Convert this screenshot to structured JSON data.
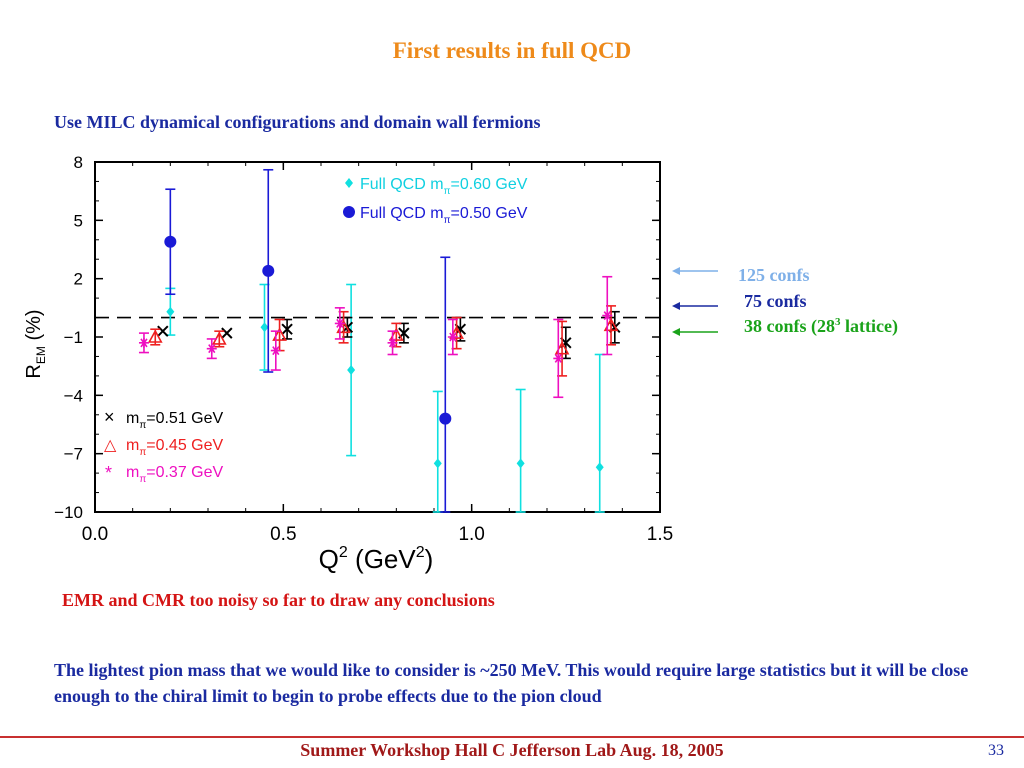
{
  "slide": {
    "title": "First results in full QCD",
    "subtitle": "Use MILC dynamical configurations and domain wall fermions",
    "emr_note": "EMR and CMR too noisy so far  to draw any conclusions",
    "paragraph": "The lightest pion mass that we would like to consider is ~250 MeV. This would require large statistics but it will be close enough to the chiral limit to begin to probe effects due to the pion cloud",
    "footer": "Summer Workshop     Hall C Jefferson Lab Aug. 18, 2005",
    "page_number": "33"
  },
  "conf_notes": {
    "n125": "125 confs",
    "n75": "75 confs",
    "n38_pre": "38 confs (28",
    "n38_sup": "3",
    "n38_post": " lattice)"
  },
  "colors": {
    "title": "#ee8a1a",
    "text_blue": "#1a2aa0",
    "red": "#d41414",
    "light_blue": "#7fb0e8",
    "green": "#1aa31a"
  },
  "chart_data": {
    "type": "scatter",
    "ylabel": "R_EM (%)",
    "xlabel": "Q^2 (GeV^2)",
    "xlim": [
      0.0,
      1.5
    ],
    "ylim": [
      -10,
      8
    ],
    "xticks": [
      "0.0",
      "0.5",
      "1.0",
      "1.5"
    ],
    "yticks": [
      "8",
      "5",
      "2",
      "−1",
      "−4",
      "−7",
      "−10"
    ],
    "ytick_values": [
      8,
      5,
      2,
      -1,
      -4,
      -7,
      -10
    ],
    "xtick_values": [
      0.0,
      0.5,
      1.0,
      1.5
    ],
    "reference_line": 0,
    "series": [
      {
        "name": "Full  QCD  m_π=0.60  GeV",
        "marker": "diamond",
        "color": "#10e0e0",
        "points": [
          {
            "x": 0.2,
            "y": 0.3,
            "err": 1.2
          },
          {
            "x": 0.45,
            "y": -0.5,
            "err": 2.2
          },
          {
            "x": 0.68,
            "y": -2.7,
            "err": 4.4
          },
          {
            "x": 0.91,
            "y": -7.5,
            "err": 3.7
          },
          {
            "x": 1.13,
            "y": -7.5,
            "err": 3.8
          },
          {
            "x": 1.34,
            "y": -7.7,
            "err": 5.8
          }
        ]
      },
      {
        "name": "Full  QCD  m_π=0.50  GeV",
        "marker": "circle",
        "color": "#1a1ad6",
        "points": [
          {
            "x": 0.2,
            "y": 3.9,
            "err": 2.7
          },
          {
            "x": 0.46,
            "y": 2.4,
            "err": 5.2
          },
          {
            "x": 0.93,
            "y": -5.2,
            "err": 8.3
          }
        ]
      },
      {
        "name": "m_π=0.51  GeV",
        "marker": "x",
        "color": "#000000",
        "points": [
          {
            "x": 0.18,
            "y": -0.7,
            "err": 0.0
          },
          {
            "x": 0.35,
            "y": -0.8,
            "err": 0.0
          },
          {
            "x": 0.51,
            "y": -0.6,
            "err": 0.5
          },
          {
            "x": 0.67,
            "y": -0.5,
            "err": 0.5
          },
          {
            "x": 0.82,
            "y": -0.8,
            "err": 0.5
          },
          {
            "x": 0.97,
            "y": -0.6,
            "err": 0.6
          },
          {
            "x": 1.25,
            "y": -1.3,
            "err": 0.8
          },
          {
            "x": 1.38,
            "y": -0.5,
            "err": 0.8
          }
        ]
      },
      {
        "name": "m_π=0.45  GeV",
        "marker": "triangle",
        "color": "#ee2020",
        "points": [
          {
            "x": 0.16,
            "y": -1.0,
            "err": 0.4
          },
          {
            "x": 0.33,
            "y": -1.1,
            "err": 0.4
          },
          {
            "x": 0.49,
            "y": -0.9,
            "err": 0.8
          },
          {
            "x": 0.66,
            "y": -0.5,
            "err": 0.8
          },
          {
            "x": 0.8,
            "y": -0.9,
            "err": 0.6
          },
          {
            "x": 0.96,
            "y": -0.8,
            "err": 0.8
          },
          {
            "x": 1.24,
            "y": -1.6,
            "err": 1.4
          },
          {
            "x": 1.37,
            "y": -0.4,
            "err": 1.0
          }
        ]
      },
      {
        "name": "m_π=0.37  GeV",
        "marker": "asterisk",
        "color": "#ee10c0",
        "points": [
          {
            "x": 0.13,
            "y": -1.3,
            "err": 0.5
          },
          {
            "x": 0.31,
            "y": -1.6,
            "err": 0.5
          },
          {
            "x": 0.48,
            "y": -1.7,
            "err": 1.0
          },
          {
            "x": 0.65,
            "y": -0.3,
            "err": 0.8
          },
          {
            "x": 0.79,
            "y": -1.3,
            "err": 0.6
          },
          {
            "x": 0.95,
            "y": -1.0,
            "err": 0.9
          },
          {
            "x": 1.23,
            "y": -2.1,
            "err": 2.0
          },
          {
            "x": 1.36,
            "y": 0.1,
            "err": 2.0
          }
        ]
      }
    ]
  }
}
